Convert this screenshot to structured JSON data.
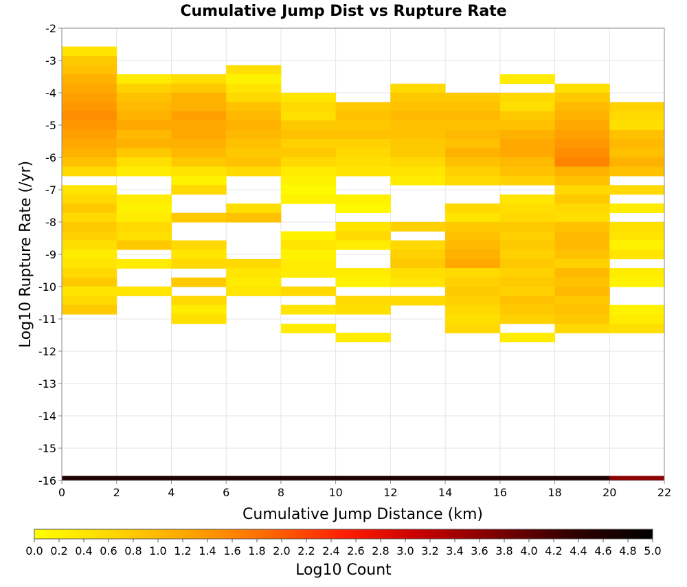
{
  "chart_data": {
    "type": "heatmap",
    "title": "Cumulative Jump Dist vs Rupture Rate",
    "xlabel": "Cumulative Jump Distance (km)",
    "ylabel": "Log10 Rupture Rate (/yr)",
    "xlim": [
      0,
      22
    ],
    "ylim": [
      -16,
      -2
    ],
    "x_ticks": [
      "0",
      "2",
      "4",
      "6",
      "8",
      "10",
      "12",
      "14",
      "16",
      "18",
      "20",
      "22"
    ],
    "y_ticks": [
      "-2",
      "-3",
      "-4",
      "-5",
      "-6",
      "-7",
      "-8",
      "-9",
      "-10",
      "-11",
      "-12",
      "-13",
      "-14",
      "-15",
      "-16"
    ],
    "x_bin_width": 2,
    "y_bin_height": 0.2857,
    "grid": true,
    "colorbar": {
      "label": "Log10 Count",
      "min": 0.0,
      "max": 5.0,
      "ticks": [
        "0.0",
        "0.2",
        "0.4",
        "0.6",
        "0.8",
        "1.0",
        "1.2",
        "1.4",
        "1.6",
        "1.8",
        "2.0",
        "2.2",
        "2.4",
        "2.6",
        "2.8",
        "3.0",
        "3.2",
        "3.4",
        "3.6",
        "3.8",
        "4.0",
        "4.2",
        "4.4",
        "4.6",
        "4.8",
        "5.0"
      ],
      "colors": [
        "#ffff00",
        "#ffd700",
        "#ffa500",
        "#ff6a00",
        "#ff1f00",
        "#c80000",
        "#7a0000",
        "#300000",
        "#000000"
      ]
    },
    "columns": [
      {
        "x": 0,
        "cells": [
          [
            -2.71,
            0.4
          ],
          [
            -3.0,
            0.8
          ],
          [
            -3.29,
            0.9
          ],
          [
            -3.57,
            1.1
          ],
          [
            -3.86,
            1.2
          ],
          [
            -4.14,
            1.3
          ],
          [
            -4.43,
            1.4
          ],
          [
            -4.71,
            1.5
          ],
          [
            -5.0,
            1.4
          ],
          [
            -5.29,
            1.3
          ],
          [
            -5.57,
            1.2
          ],
          [
            -5.86,
            1.1
          ],
          [
            -6.14,
            0.9
          ],
          [
            -6.43,
            0.6
          ],
          [
            -7.0,
            0.4
          ],
          [
            -7.29,
            0.6
          ],
          [
            -7.57,
            0.8
          ],
          [
            -7.86,
            0.6
          ],
          [
            -8.14,
            0.8
          ],
          [
            -8.43,
            0.7
          ],
          [
            -8.71,
            0.5
          ],
          [
            -9.0,
            0.3
          ],
          [
            -9.29,
            0.4
          ],
          [
            -9.57,
            0.6
          ],
          [
            -9.86,
            0.8
          ],
          [
            -10.14,
            0.4
          ],
          [
            -10.43,
            0.6
          ],
          [
            -10.71,
            0.8
          ],
          [
            -16.0,
            4.6
          ]
        ]
      },
      {
        "x": 2,
        "cells": [
          [
            -3.57,
            0.3
          ],
          [
            -3.86,
            0.7
          ],
          [
            -4.14,
            0.9
          ],
          [
            -4.43,
            1.0
          ],
          [
            -4.71,
            1.1
          ],
          [
            -5.0,
            1.2
          ],
          [
            -5.29,
            1.0
          ],
          [
            -5.57,
            1.1
          ],
          [
            -5.86,
            0.8
          ],
          [
            -6.14,
            0.5
          ],
          [
            -6.43,
            0.3
          ],
          [
            -7.29,
            0.3
          ],
          [
            -7.57,
            0.2
          ],
          [
            -7.86,
            0.3
          ],
          [
            -8.14,
            0.6
          ],
          [
            -8.43,
            0.5
          ],
          [
            -8.71,
            0.8
          ],
          [
            -9.29,
            0.3
          ],
          [
            -10.14,
            0.4
          ],
          [
            -16.0,
            4.6
          ]
        ]
      },
      {
        "x": 4,
        "cells": [
          [
            -3.57,
            0.5
          ],
          [
            -3.86,
            0.8
          ],
          [
            -4.14,
            1.1
          ],
          [
            -4.43,
            1.1
          ],
          [
            -4.71,
            1.3
          ],
          [
            -5.0,
            1.2
          ],
          [
            -5.29,
            1.2
          ],
          [
            -5.57,
            1.1
          ],
          [
            -5.86,
            1.0
          ],
          [
            -6.14,
            0.8
          ],
          [
            -6.43,
            0.4
          ],
          [
            -6.71,
            0.2
          ],
          [
            -7.0,
            0.6
          ],
          [
            -7.86,
            0.8
          ],
          [
            -8.71,
            0.6
          ],
          [
            -9.0,
            0.4
          ],
          [
            -9.29,
            0.6
          ],
          [
            -9.86,
            0.8
          ],
          [
            -10.43,
            0.6
          ],
          [
            -10.71,
            0.3
          ],
          [
            -11.0,
            0.5
          ],
          [
            -16.0,
            4.6
          ]
        ]
      },
      {
        "x": 6,
        "cells": [
          [
            -3.29,
            0.5
          ],
          [
            -3.57,
            0.2
          ],
          [
            -3.86,
            0.4
          ],
          [
            -4.14,
            0.6
          ],
          [
            -4.43,
            0.9
          ],
          [
            -4.71,
            1.0
          ],
          [
            -5.0,
            1.1
          ],
          [
            -5.29,
            1.0
          ],
          [
            -5.57,
            0.9
          ],
          [
            -5.86,
            0.8
          ],
          [
            -6.14,
            0.9
          ],
          [
            -6.43,
            0.6
          ],
          [
            -7.57,
            0.5
          ],
          [
            -7.86,
            0.9
          ],
          [
            -9.29,
            0.6
          ],
          [
            -9.57,
            0.4
          ],
          [
            -9.86,
            0.3
          ],
          [
            -10.14,
            0.4
          ],
          [
            -16.0,
            4.6
          ]
        ]
      },
      {
        "x": 8,
        "cells": [
          [
            -4.14,
            0.4
          ],
          [
            -4.43,
            0.6
          ],
          [
            -4.71,
            0.5
          ],
          [
            -5.0,
            0.8
          ],
          [
            -5.29,
            0.9
          ],
          [
            -5.57,
            0.7
          ],
          [
            -5.86,
            0.8
          ],
          [
            -6.14,
            0.6
          ],
          [
            -6.43,
            0.3
          ],
          [
            -6.71,
            0.2
          ],
          [
            -7.0,
            0.1
          ],
          [
            -7.29,
            0.2
          ],
          [
            -8.43,
            0.2
          ],
          [
            -8.71,
            0.4
          ],
          [
            -9.0,
            0.2
          ],
          [
            -9.29,
            0.3
          ],
          [
            -9.57,
            0.3
          ],
          [
            -10.14,
            0.6
          ],
          [
            -10.71,
            0.4
          ],
          [
            -11.29,
            0.3
          ],
          [
            -16.0,
            4.6
          ]
        ]
      },
      {
        "x": 10,
        "cells": [
          [
            -4.43,
            0.8
          ],
          [
            -4.71,
            0.9
          ],
          [
            -5.0,
            0.8
          ],
          [
            -5.29,
            0.9
          ],
          [
            -5.57,
            0.7
          ],
          [
            -5.86,
            0.6
          ],
          [
            -6.14,
            0.5
          ],
          [
            -6.43,
            0.4
          ],
          [
            -7.29,
            0.2
          ],
          [
            -7.57,
            0.1
          ],
          [
            -8.14,
            0.4
          ],
          [
            -8.43,
            0.6
          ],
          [
            -8.71,
            0.3
          ],
          [
            -9.57,
            0.3
          ],
          [
            -9.86,
            0.2
          ],
          [
            -10.43,
            0.6
          ],
          [
            -10.71,
            0.5
          ],
          [
            -11.57,
            0.3
          ],
          [
            -16.0,
            4.6
          ]
        ]
      },
      {
        "x": 12,
        "cells": [
          [
            -3.86,
            0.6
          ],
          [
            -4.14,
            0.8
          ],
          [
            -4.43,
            0.9
          ],
          [
            -4.71,
            1.0
          ],
          [
            -5.0,
            0.9
          ],
          [
            -5.29,
            0.9
          ],
          [
            -5.57,
            0.8
          ],
          [
            -5.86,
            0.8
          ],
          [
            -6.14,
            0.6
          ],
          [
            -6.43,
            0.4
          ],
          [
            -6.71,
            0.3
          ],
          [
            -8.14,
            0.7
          ],
          [
            -8.71,
            0.6
          ],
          [
            -9.0,
            0.7
          ],
          [
            -9.29,
            0.8
          ],
          [
            -9.57,
            0.5
          ],
          [
            -9.86,
            0.4
          ],
          [
            -10.43,
            0.6
          ],
          [
            -16.0,
            4.6
          ]
        ]
      },
      {
        "x": 14,
        "cells": [
          [
            -4.14,
            0.8
          ],
          [
            -4.43,
            0.9
          ],
          [
            -4.71,
            1.0
          ],
          [
            -5.0,
            0.9
          ],
          [
            -5.29,
            1.0
          ],
          [
            -5.57,
            0.9
          ],
          [
            -5.86,
            1.1
          ],
          [
            -6.14,
            0.9
          ],
          [
            -6.43,
            0.7
          ],
          [
            -6.71,
            0.6
          ],
          [
            -7.57,
            0.6
          ],
          [
            -7.86,
            0.4
          ],
          [
            -8.14,
            0.8
          ],
          [
            -8.43,
            0.9
          ],
          [
            -8.71,
            1.0
          ],
          [
            -9.0,
            1.1
          ],
          [
            -9.29,
            1.2
          ],
          [
            -9.57,
            0.6
          ],
          [
            -9.86,
            0.7
          ],
          [
            -10.14,
            0.8
          ],
          [
            -10.43,
            0.7
          ],
          [
            -10.71,
            0.6
          ],
          [
            -11.0,
            0.5
          ],
          [
            -11.29,
            0.6
          ],
          [
            -16.0,
            4.6
          ]
        ]
      },
      {
        "x": 16,
        "cells": [
          [
            -3.57,
            0.3
          ],
          [
            -4.14,
            0.6
          ],
          [
            -4.43,
            0.5
          ],
          [
            -4.71,
            0.8
          ],
          [
            -5.0,
            0.9
          ],
          [
            -5.29,
            1.1
          ],
          [
            -5.57,
            1.2
          ],
          [
            -5.86,
            1.2
          ],
          [
            -6.14,
            1.0
          ],
          [
            -6.43,
            0.9
          ],
          [
            -6.71,
            0.7
          ],
          [
            -7.29,
            0.4
          ],
          [
            -7.57,
            0.5
          ],
          [
            -7.86,
            0.6
          ],
          [
            -8.14,
            0.8
          ],
          [
            -8.43,
            0.7
          ],
          [
            -8.71,
            0.8
          ],
          [
            -9.0,
            0.7
          ],
          [
            -9.29,
            0.8
          ],
          [
            -9.57,
            0.7
          ],
          [
            -9.86,
            0.8
          ],
          [
            -10.14,
            0.7
          ],
          [
            -10.43,
            0.9
          ],
          [
            -10.71,
            0.8
          ],
          [
            -11.0,
            0.7
          ],
          [
            -11.57,
            0.3
          ],
          [
            -16.0,
            4.6
          ]
        ]
      },
      {
        "x": 18,
        "cells": [
          [
            -3.86,
            0.5
          ],
          [
            -4.14,
            0.8
          ],
          [
            -4.43,
            1.0
          ],
          [
            -4.71,
            1.1
          ],
          [
            -5.0,
            1.2
          ],
          [
            -5.29,
            1.3
          ],
          [
            -5.57,
            1.4
          ],
          [
            -5.86,
            1.5
          ],
          [
            -6.14,
            1.6
          ],
          [
            -6.43,
            1.1
          ],
          [
            -6.71,
            0.9
          ],
          [
            -7.0,
            0.6
          ],
          [
            -7.29,
            0.8
          ],
          [
            -7.57,
            0.6
          ],
          [
            -7.86,
            0.5
          ],
          [
            -8.14,
            0.9
          ],
          [
            -8.43,
            1.0
          ],
          [
            -8.71,
            1.0
          ],
          [
            -9.0,
            0.9
          ],
          [
            -9.29,
            0.7
          ],
          [
            -9.57,
            1.0
          ],
          [
            -9.86,
            0.9
          ],
          [
            -10.14,
            1.0
          ],
          [
            -10.43,
            0.8
          ],
          [
            -10.71,
            0.9
          ],
          [
            -11.0,
            0.8
          ],
          [
            -11.29,
            0.6
          ],
          [
            -16.0,
            4.6
          ]
        ]
      },
      {
        "x": 20,
        "cells": [
          [
            -4.43,
            0.7
          ],
          [
            -4.71,
            0.6
          ],
          [
            -5.0,
            0.5
          ],
          [
            -5.29,
            0.9
          ],
          [
            -5.57,
            1.0
          ],
          [
            -5.86,
            0.9
          ],
          [
            -6.14,
            1.1
          ],
          [
            -6.43,
            0.9
          ],
          [
            -7.0,
            0.6
          ],
          [
            -7.57,
            0.3
          ],
          [
            -8.14,
            0.5
          ],
          [
            -8.43,
            0.4
          ],
          [
            -8.71,
            0.2
          ],
          [
            -9.0,
            0.4
          ],
          [
            -9.57,
            0.3
          ],
          [
            -9.86,
            0.2
          ],
          [
            -10.71,
            0.2
          ],
          [
            -11.0,
            0.3
          ],
          [
            -11.29,
            0.5
          ],
          [
            -16.0,
            3.6
          ]
        ]
      }
    ]
  }
}
